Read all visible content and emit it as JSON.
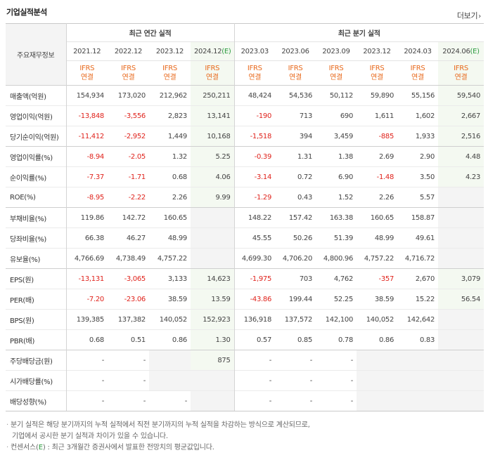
{
  "header": {
    "title": "기업실적분석",
    "more_label": "더보기"
  },
  "table": {
    "row_header_label": "주요재무정보",
    "annual_group_label": "최근 연간 실적",
    "quarter_group_label": "최근 분기 실적",
    "columns": [
      {
        "period": "2021.12",
        "est": false,
        "estimate_mark": ""
      },
      {
        "period": "2022.12",
        "est": false,
        "estimate_mark": ""
      },
      {
        "period": "2023.12",
        "est": false,
        "estimate_mark": ""
      },
      {
        "period": "2024.12",
        "est": true,
        "estimate_mark": "(E)"
      },
      {
        "period": "2023.03",
        "est": false,
        "estimate_mark": ""
      },
      {
        "period": "2023.06",
        "est": false,
        "estimate_mark": ""
      },
      {
        "period": "2023.09",
        "est": false,
        "estimate_mark": ""
      },
      {
        "period": "2023.12",
        "est": false,
        "estimate_mark": ""
      },
      {
        "period": "2024.03",
        "est": false,
        "estimate_mark": ""
      },
      {
        "period": "2024.06",
        "est": true,
        "estimate_mark": "(E)"
      }
    ],
    "standard_line1": "IFRS",
    "standard_line2": "연결",
    "rows": [
      {
        "label": "매출액(억원)",
        "group_start": true,
        "values": [
          "154,934",
          "173,020",
          "212,962",
          "250,211",
          "48,424",
          "54,536",
          "50,112",
          "59,890",
          "55,156",
          "59,540"
        ]
      },
      {
        "label": "영업이익(억원)",
        "group_start": false,
        "values": [
          "-13,848",
          "-3,556",
          "2,823",
          "13,141",
          "-190",
          "713",
          "690",
          "1,611",
          "1,602",
          "2,667"
        ]
      },
      {
        "label": "당기순이익(억원)",
        "group_start": false,
        "values": [
          "-11,412",
          "-2,952",
          "1,449",
          "10,168",
          "-1,518",
          "394",
          "3,459",
          "-885",
          "1,933",
          "2,516"
        ]
      },
      {
        "label": "영업이익률(%)",
        "group_start": true,
        "values": [
          "-8.94",
          "-2.05",
          "1.32",
          "5.25",
          "-0.39",
          "1.31",
          "1.38",
          "2.69",
          "2.90",
          "4.48"
        ]
      },
      {
        "label": "순이익률(%)",
        "group_start": false,
        "values": [
          "-7.37",
          "-1.71",
          "0.68",
          "4.06",
          "-3.14",
          "0.72",
          "6.90",
          "-1.48",
          "3.50",
          "4.23"
        ]
      },
      {
        "label": "ROE(%)",
        "group_start": false,
        "values": [
          "-8.95",
          "-2.22",
          "2.26",
          "9.99",
          "-1.29",
          "0.43",
          "1.52",
          "2.26",
          "5.57",
          ""
        ]
      },
      {
        "label": "부채비율(%)",
        "group_start": true,
        "values": [
          "119.86",
          "142.72",
          "160.65",
          "",
          "148.22",
          "157.42",
          "163.38",
          "160.65",
          "158.87",
          ""
        ]
      },
      {
        "label": "당좌비율(%)",
        "group_start": false,
        "values": [
          "66.38",
          "46.27",
          "48.99",
          "",
          "45.55",
          "50.26",
          "51.39",
          "48.99",
          "49.61",
          ""
        ]
      },
      {
        "label": "유보율(%)",
        "group_start": false,
        "values": [
          "4,766.69",
          "4,738.49",
          "4,757.22",
          "",
          "4,699.30",
          "4,706.20",
          "4,800.96",
          "4,757.22",
          "4,716.72",
          ""
        ]
      },
      {
        "label": "EPS(원)",
        "group_start": true,
        "values": [
          "-13,131",
          "-3,065",
          "3,133",
          "14,623",
          "-1,975",
          "703",
          "4,762",
          "-357",
          "2,670",
          "3,079"
        ]
      },
      {
        "label": "PER(배)",
        "group_start": false,
        "values": [
          "-7.20",
          "-23.06",
          "38.59",
          "13.59",
          "-43.86",
          "199.44",
          "52.25",
          "38.59",
          "15.22",
          "56.54"
        ]
      },
      {
        "label": "BPS(원)",
        "group_start": false,
        "values": [
          "139,385",
          "137,382",
          "140,052",
          "152,923",
          "136,918",
          "137,572",
          "142,100",
          "140,052",
          "142,642",
          ""
        ]
      },
      {
        "label": "PBR(배)",
        "group_start": false,
        "values": [
          "0.68",
          "0.51",
          "0.86",
          "1.30",
          "0.57",
          "0.85",
          "0.78",
          "0.86",
          "0.83",
          ""
        ]
      },
      {
        "label": "주당배당금(원)",
        "group_start": true,
        "values": [
          "-",
          "-",
          "",
          "875",
          "-",
          "-",
          "-",
          "",
          "",
          ""
        ]
      },
      {
        "label": "시가배당률(%)",
        "group_start": false,
        "values": [
          "-",
          "-",
          "",
          "",
          "-",
          "-",
          "-",
          "",
          "",
          ""
        ]
      },
      {
        "label": "배당성향(%)",
        "group_start": false,
        "values": [
          "-",
          "-",
          "-",
          "",
          "-",
          "-",
          "-",
          "",
          "",
          ""
        ]
      }
    ]
  },
  "notes": {
    "line1": "분기 실적은 해당 분기까지의 누적 실적에서 직전 분기까지의 누적 실적을 차감하는 방식으로 계산되므로,",
    "line2": "기업에서 공시한 분기 실적과 차이가 있을 수 있습니다.",
    "line3_prefix": "컨센서스(",
    "line3_mark": "E",
    "line3_suffix": ") : 최근 3개월간 증권사에서 발표한 전망치의 평균값입니다."
  },
  "colors": {
    "negative": "#e0231c",
    "standard": "#e8691c",
    "estimate": "#2b9a3f",
    "estimate_bg": "#f4f9f1"
  }
}
